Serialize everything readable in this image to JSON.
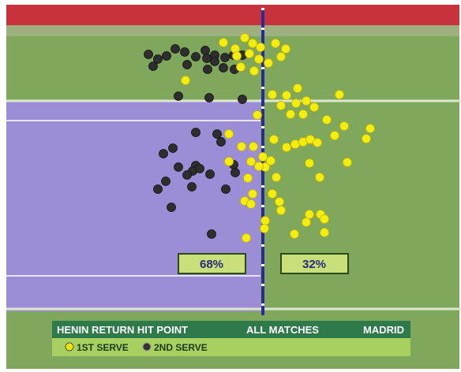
{
  "panels": {
    "left_percent": "68%",
    "right_percent": "32%"
  },
  "banner": {
    "title": "HENIN RETURN HIT POINT",
    "scope": "ALL MATCHES",
    "venue": "MADRID"
  },
  "legend": {
    "first": "1ST SERVE",
    "second": "2ND SERVE"
  }
}
